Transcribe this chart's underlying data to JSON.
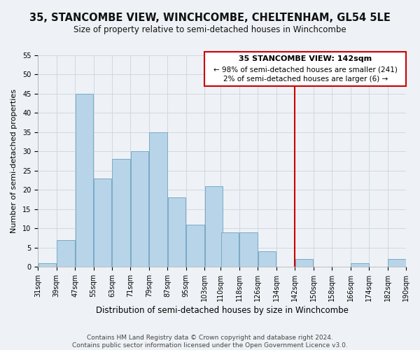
{
  "title": "35, STANCOMBE VIEW, WINCHCOMBE, CHELTENHAM, GL54 5LE",
  "subtitle": "Size of property relative to semi-detached houses in Winchcombe",
  "xlabel": "Distribution of semi-detached houses by size in Winchcombe",
  "ylabel": "Number of semi-detached properties",
  "footer1": "Contains HM Land Registry data © Crown copyright and database right 2024.",
  "footer2": "Contains public sector information licensed under the Open Government Licence v3.0.",
  "bin_edges": [
    31,
    39,
    47,
    55,
    63,
    71,
    79,
    87,
    95,
    103,
    110,
    118,
    126,
    134,
    142,
    150,
    158,
    166,
    174,
    182,
    190
  ],
  "bar_heights": [
    1,
    7,
    45,
    23,
    28,
    30,
    35,
    18,
    11,
    21,
    9,
    9,
    4,
    0,
    2,
    0,
    0,
    1,
    0,
    2
  ],
  "bar_color": "#b8d4e8",
  "bar_edgecolor": "#7aaac8",
  "grid_color": "#d0d8e0",
  "background_color": "#eef2f6",
  "vline_x": 142,
  "vline_color": "#cc0000",
  "annotation_title": "35 STANCOMBE VIEW: 142sqm",
  "annotation_line1": "← 98% of semi-detached houses are smaller (241)",
  "annotation_line2": "2% of semi-detached houses are larger (6) →",
  "annotation_box_facecolor": "#ffffff",
  "annotation_border_color": "#cc0000",
  "ylim": [
    0,
    55
  ],
  "yticks": [
    0,
    5,
    10,
    15,
    20,
    25,
    30,
    35,
    40,
    45,
    50,
    55
  ],
  "title_fontsize": 10.5,
  "subtitle_fontsize": 8.5,
  "xlabel_fontsize": 8.5,
  "ylabel_fontsize": 8,
  "tick_fontsize": 7,
  "footer_fontsize": 6.5,
  "ann_title_fontsize": 8,
  "ann_text_fontsize": 7.5
}
